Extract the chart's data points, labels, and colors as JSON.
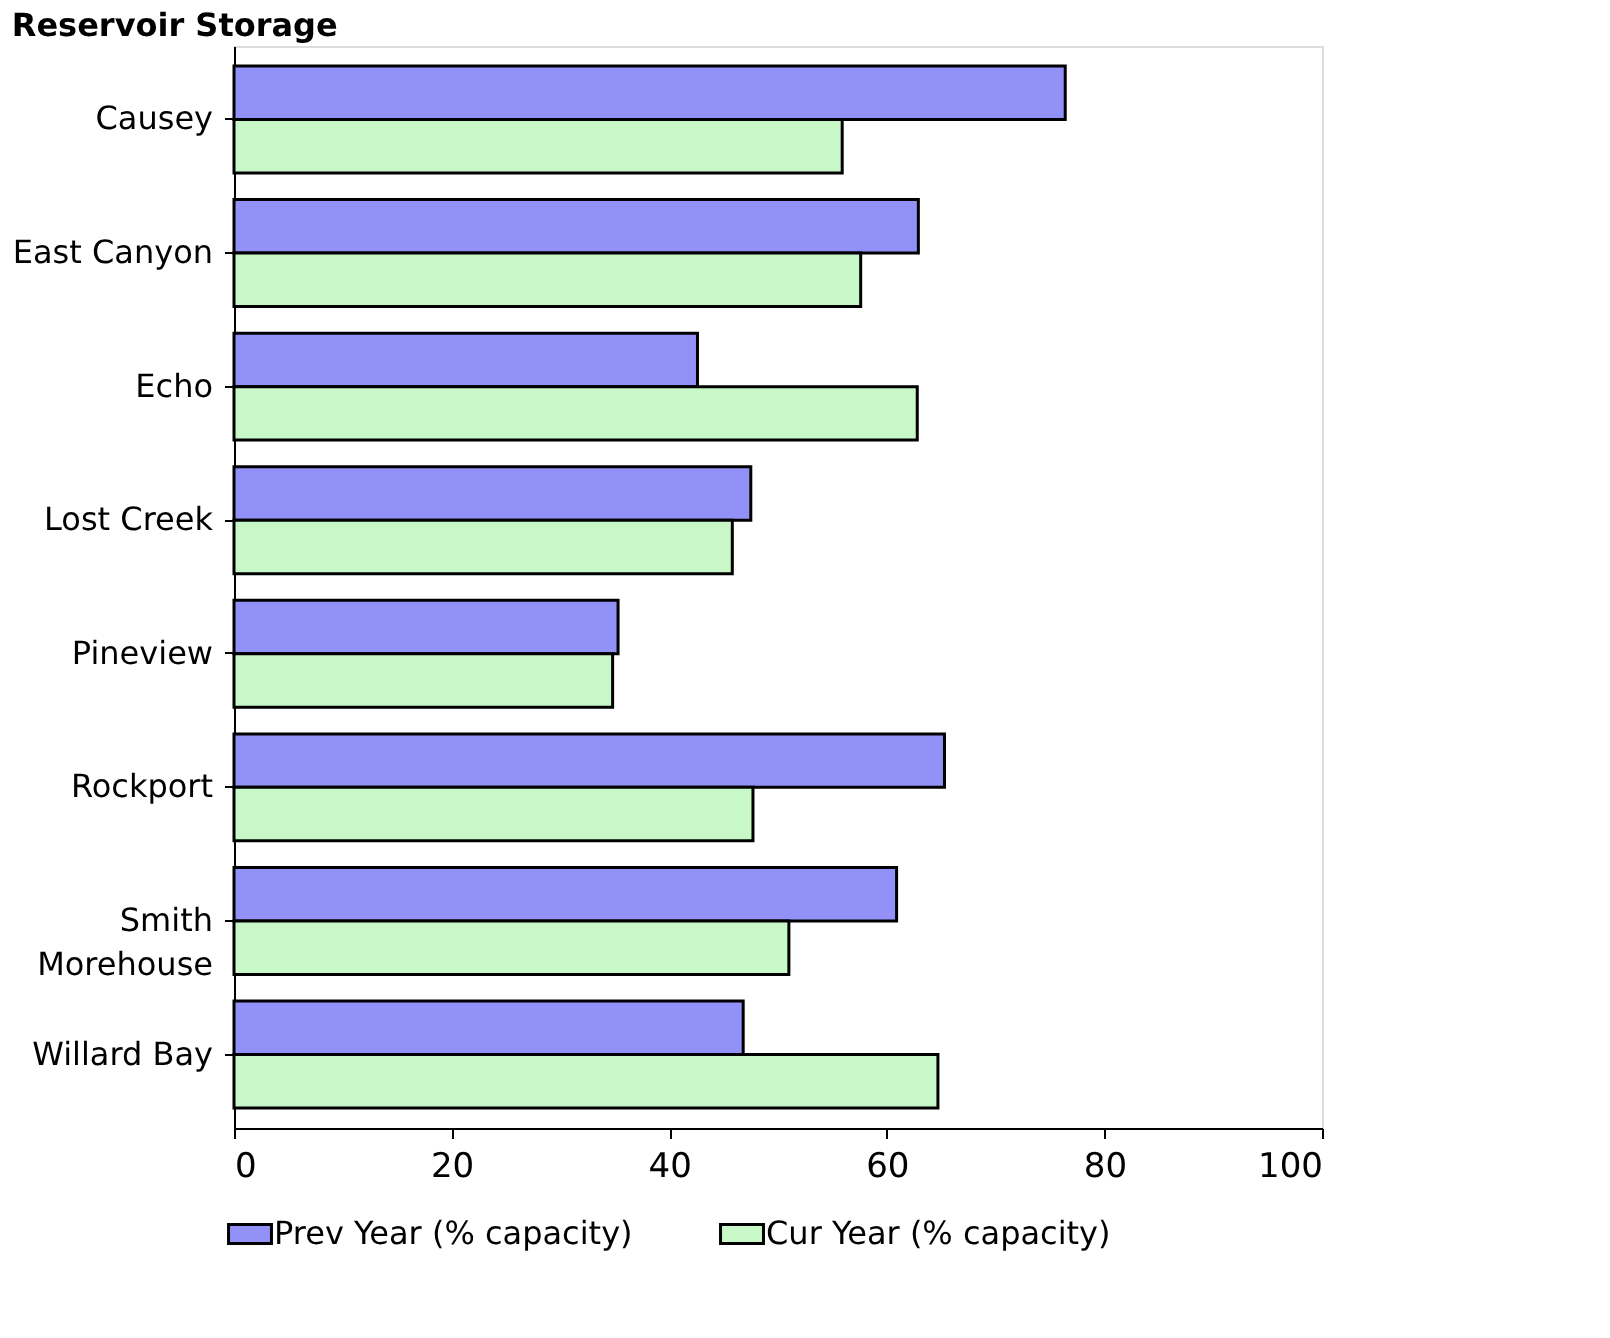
{
  "chart_data": {
    "type": "bar",
    "orientation": "horizontal",
    "title": "Reservoir Storage",
    "categories": [
      "Causey",
      "East Canyon",
      "Echo",
      "Lost Creek",
      "Pineview",
      "Rockport",
      "Smith\nMorehouse",
      "Willard Bay"
    ],
    "series": [
      {
        "name": "Prev Year (% capacity)",
        "color": "#9191f7",
        "values": [
          76.4,
          62.9,
          42.6,
          47.5,
          35.3,
          65.3,
          60.9,
          46.8
        ]
      },
      {
        "name": "Cur Year (% capacity)",
        "color": "#c8f8c8",
        "values": [
          55.9,
          57.6,
          62.8,
          45.8,
          34.8,
          47.7,
          51.0,
          64.7
        ]
      }
    ],
    "xlim": [
      0,
      100
    ],
    "xticks": [
      0,
      20,
      40,
      60,
      80,
      100
    ],
    "legend": "bottom"
  }
}
